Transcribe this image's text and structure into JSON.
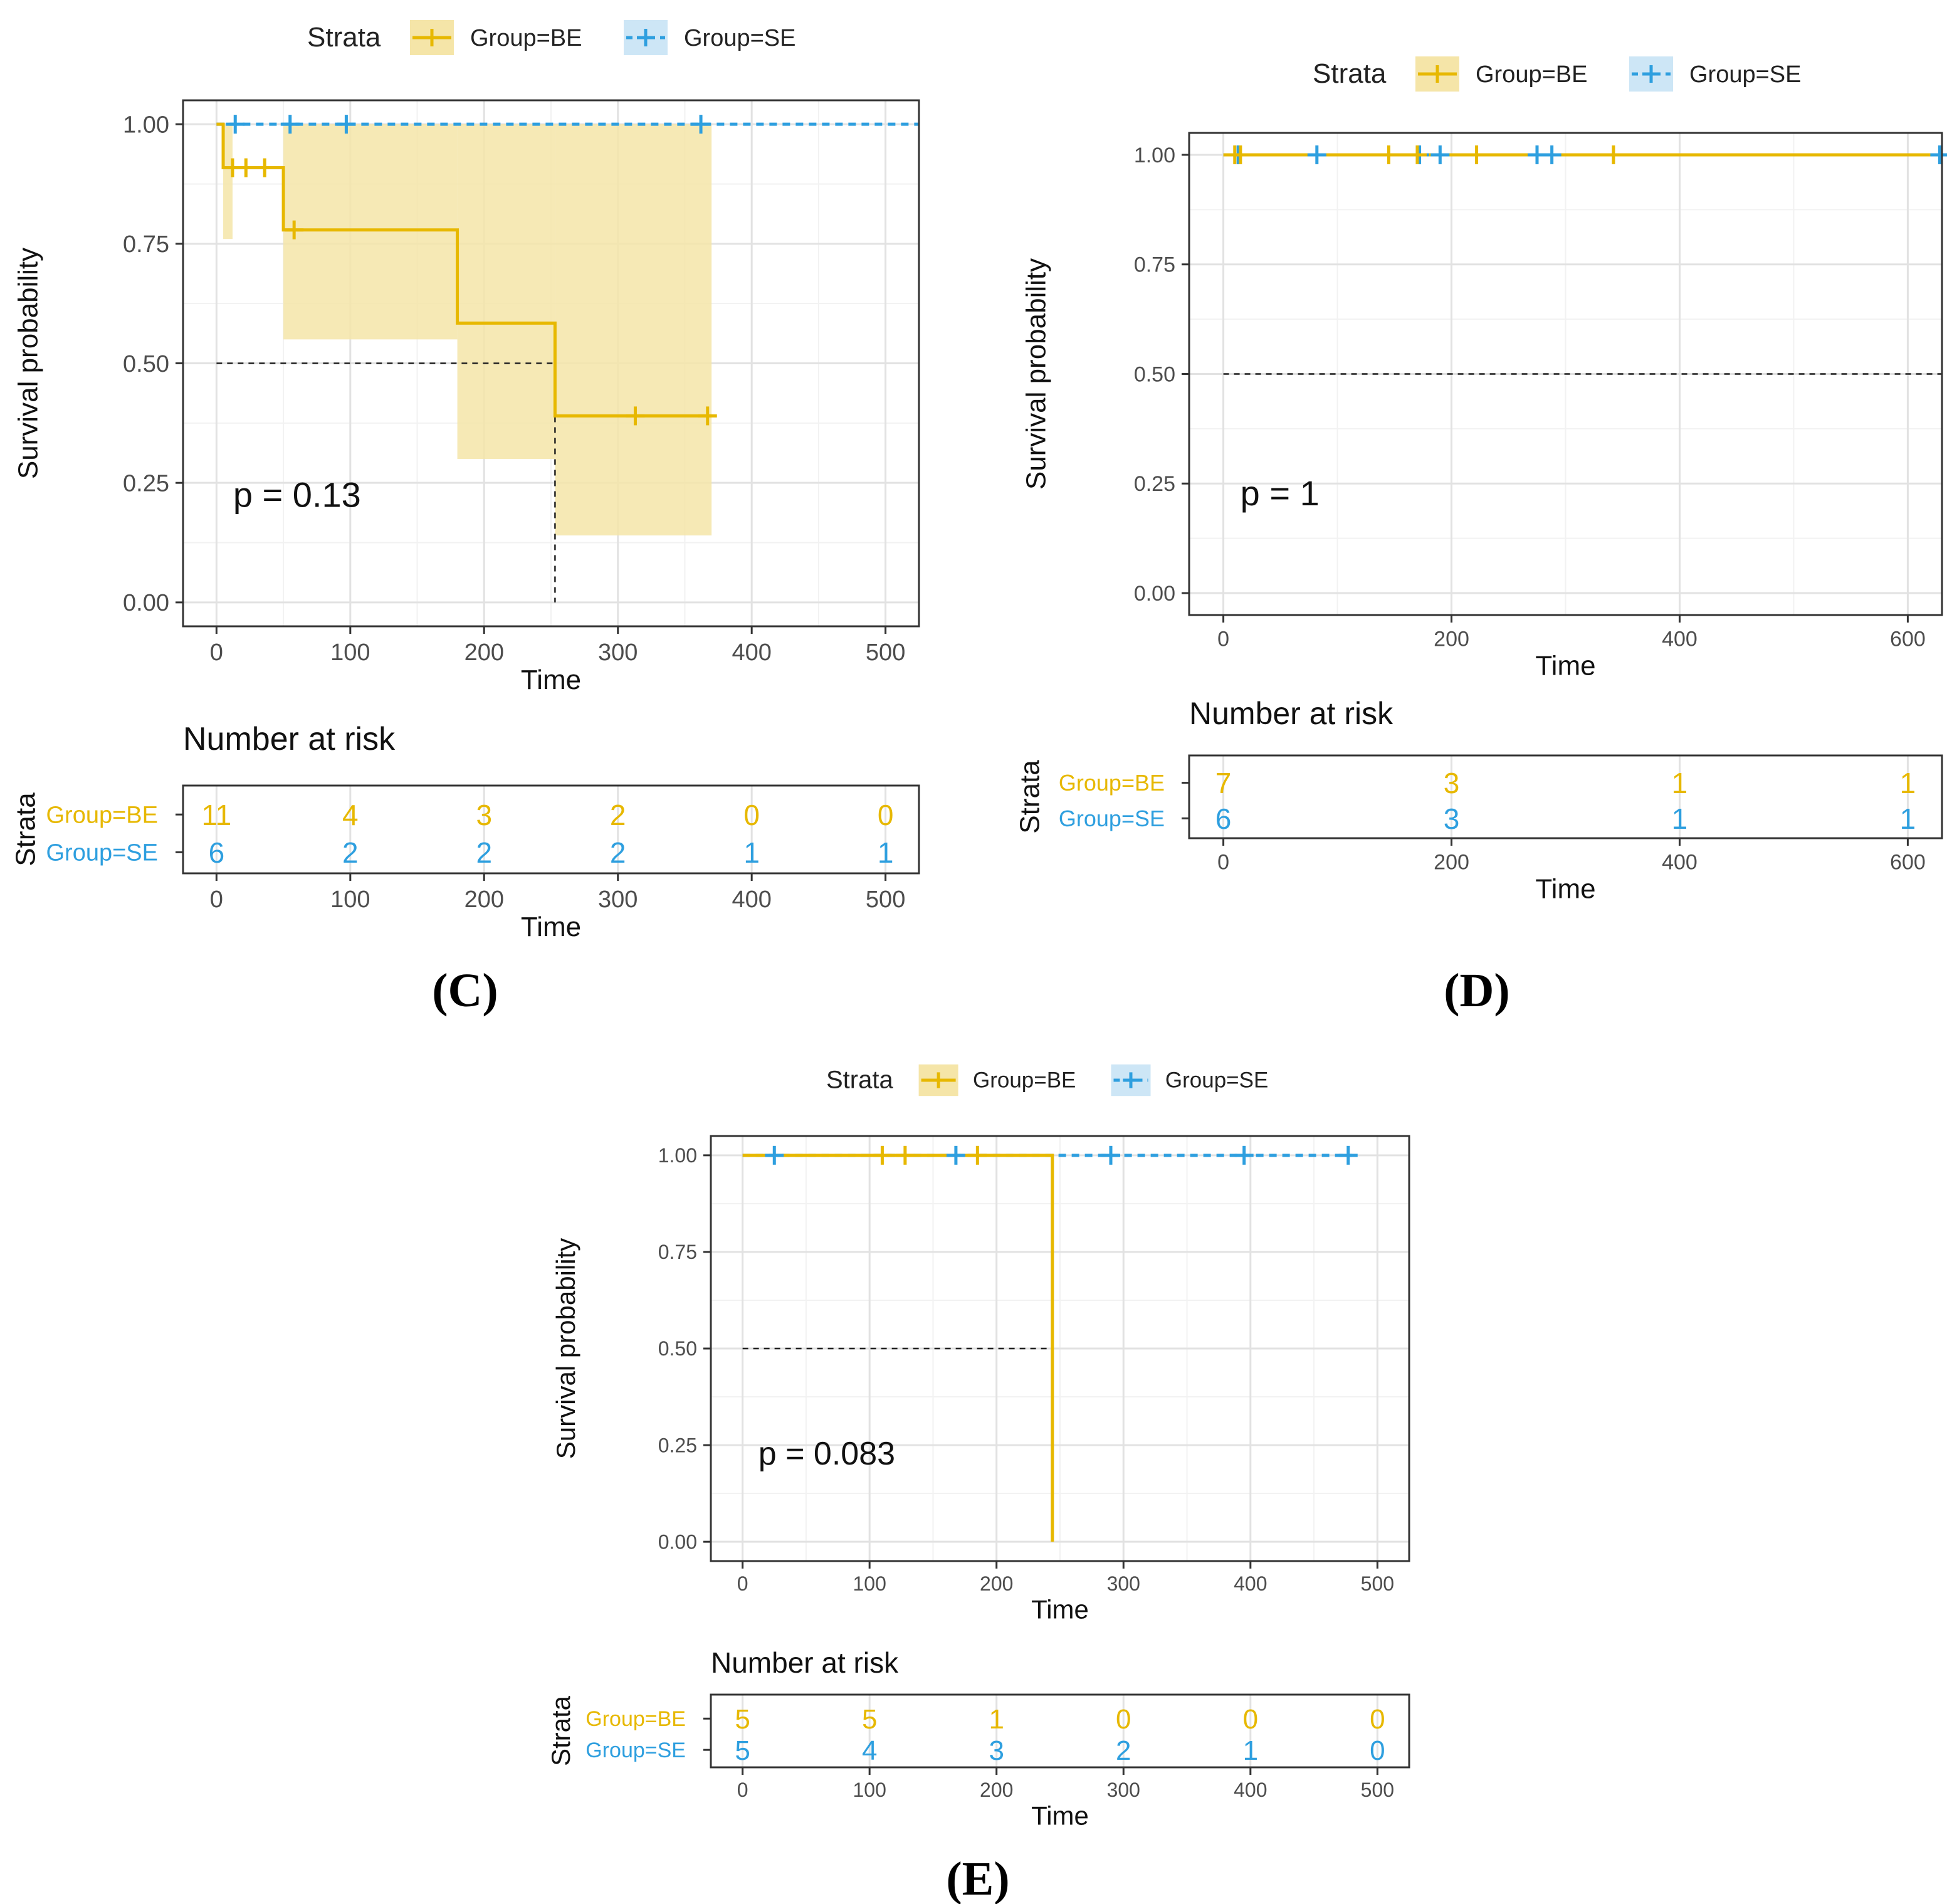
{
  "colors": {
    "be": "#E7B800",
    "se": "#2E9FDF",
    "be_band": "#F5E5A8",
    "axis": "#333333",
    "tick": "#4D4D4D",
    "grid_major": "#E2E2E2",
    "grid_minor": "#F2F2F2",
    "median_line": "#222222"
  },
  "legend": {
    "title": "Strata",
    "items": [
      "Group=BE",
      "Group=SE"
    ]
  },
  "risk_table": {
    "title": "Number at risk",
    "ylabel": "Strata"
  },
  "chart_data": [
    {
      "panel": "(C)",
      "type": "line",
      "title": "",
      "xlabel": "Time",
      "ylabel": "Survival probability",
      "xlim": [
        -25,
        525
      ],
      "ylim": [
        -0.05,
        1.05
      ],
      "x_ticks": [
        0,
        100,
        200,
        300,
        400,
        500
      ],
      "y_ticks": [
        0,
        0.25,
        0.5,
        0.75,
        1.0
      ],
      "y_tick_labels": [
        "0.00",
        "0.25",
        "0.50",
        "0.75",
        "1.00"
      ],
      "pvalue": "p = 0.13",
      "median_line": {
        "y": 0.5,
        "x": 253
      },
      "series": [
        {
          "name": "Group=BE",
          "steps": [
            [
              0,
              1.0
            ],
            [
              5,
              0.909
            ],
            [
              50,
              0.779
            ],
            [
              180,
              0.584
            ],
            [
              253,
              0.39
            ],
            [
              370,
              0.39
            ]
          ],
          "censors": [
            [
              12,
              0.909
            ],
            [
              22,
              0.909
            ],
            [
              36,
              0.909
            ],
            [
              58,
              0.779
            ],
            [
              313,
              0.39
            ],
            [
              367,
              0.39
            ]
          ],
          "band": [
            [
              5,
              12,
              0.76,
              1.0
            ],
            [
              50,
              180,
              0.55,
              1.0
            ],
            [
              180,
              253,
              0.3,
              1.0
            ],
            [
              253,
              370,
              0.14,
              1.0
            ]
          ]
        },
        {
          "name": "Group=SE",
          "steps": [
            [
              0,
              1.0
            ],
            [
              525,
              1.0
            ]
          ],
          "censors": [
            [
              14,
              1.0
            ],
            [
              55,
              1.0
            ],
            [
              97,
              1.0
            ],
            [
              362,
              1.0
            ]
          ]
        }
      ],
      "risk": {
        "times": [
          0,
          100,
          200,
          300,
          400,
          500
        ],
        "rows": [
          {
            "name": "Group=BE",
            "values": [
              "11",
              "4",
              "3",
              "2",
              "0",
              "0"
            ]
          },
          {
            "name": "Group=SE",
            "values": [
              "6",
              "2",
              "2",
              "2",
              "1",
              "1"
            ]
          }
        ]
      }
    },
    {
      "panel": "(D)",
      "type": "line",
      "title": "",
      "xlabel": "Time",
      "ylabel": "Survival probability",
      "xlim": [
        -30,
        630
      ],
      "ylim": [
        -0.05,
        1.05
      ],
      "x_ticks": [
        0,
        200,
        400,
        600
      ],
      "y_ticks": [
        0,
        0.25,
        0.5,
        0.75,
        1.0
      ],
      "y_tick_labels": [
        "0.00",
        "0.25",
        "0.50",
        "0.75",
        "1.00"
      ],
      "pvalue": "p = 1",
      "median_line": {
        "y": 0.5,
        "x": null
      },
      "series": [
        {
          "name": "Group=BE",
          "steps": [
            [
              0,
              1.0
            ],
            [
              630,
              1.0
            ]
          ],
          "censors": [
            [
              10,
              1.0
            ],
            [
              15,
              1.0
            ],
            [
              145,
              1.0
            ],
            [
              170,
              1.0
            ],
            [
              222,
              1.0
            ],
            [
              342,
              1.0
            ]
          ]
        },
        {
          "name": "Group=SE",
          "steps": [
            [
              0,
              1.0
            ],
            [
              630,
              1.0
            ]
          ],
          "censors": [
            [
              13,
              1.0
            ],
            [
              82,
              1.0
            ],
            [
              172,
              1.0
            ],
            [
              190,
              1.0
            ],
            [
              275,
              1.0
            ],
            [
              288,
              1.0
            ],
            [
              628,
              1.0
            ]
          ]
        }
      ],
      "risk": {
        "times": [
          0,
          200,
          400,
          600
        ],
        "rows": [
          {
            "name": "Group=BE",
            "values": [
              "7",
              "3",
              "1",
              "1"
            ]
          },
          {
            "name": "Group=SE",
            "values": [
              "6",
              "3",
              "1",
              "1"
            ]
          }
        ]
      }
    },
    {
      "panel": "(E)",
      "type": "line",
      "title": "",
      "xlabel": "Time",
      "ylabel": "Survival probability",
      "xlim": [
        -25,
        525
      ],
      "ylim": [
        -0.05,
        1.05
      ],
      "x_ticks": [
        0,
        100,
        200,
        300,
        400,
        500
      ],
      "y_ticks": [
        0,
        0.25,
        0.5,
        0.75,
        1.0
      ],
      "y_tick_labels": [
        "0.00",
        "0.25",
        "0.50",
        "0.75",
        "1.00"
      ],
      "pvalue": "p = 0.083",
      "median_line": {
        "y": 0.5,
        "x": 244
      },
      "series": [
        {
          "name": "Group=BE",
          "steps": [
            [
              0,
              1.0
            ],
            [
              244,
              0.0
            ]
          ],
          "censors": [
            [
              110,
              1.0
            ],
            [
              128,
              1.0
            ],
            [
              185,
              1.0
            ]
          ]
        },
        {
          "name": "Group=SE",
          "steps": [
            [
              0,
              1.0
            ],
            [
              480,
              1.0
            ]
          ],
          "censors": [
            [
              25,
              1.0
            ],
            [
              168,
              1.0
            ],
            [
              290,
              1.0
            ],
            [
              395,
              1.0
            ],
            [
              477,
              1.0
            ]
          ]
        }
      ],
      "risk": {
        "times": [
          0,
          100,
          200,
          300,
          400,
          500
        ],
        "rows": [
          {
            "name": "Group=BE",
            "values": [
              "5",
              "5",
              "1",
              "0",
              "0",
              "0"
            ]
          },
          {
            "name": "Group=SE",
            "values": [
              "5",
              "4",
              "3",
              "2",
              "1",
              "0"
            ]
          }
        ]
      }
    }
  ]
}
